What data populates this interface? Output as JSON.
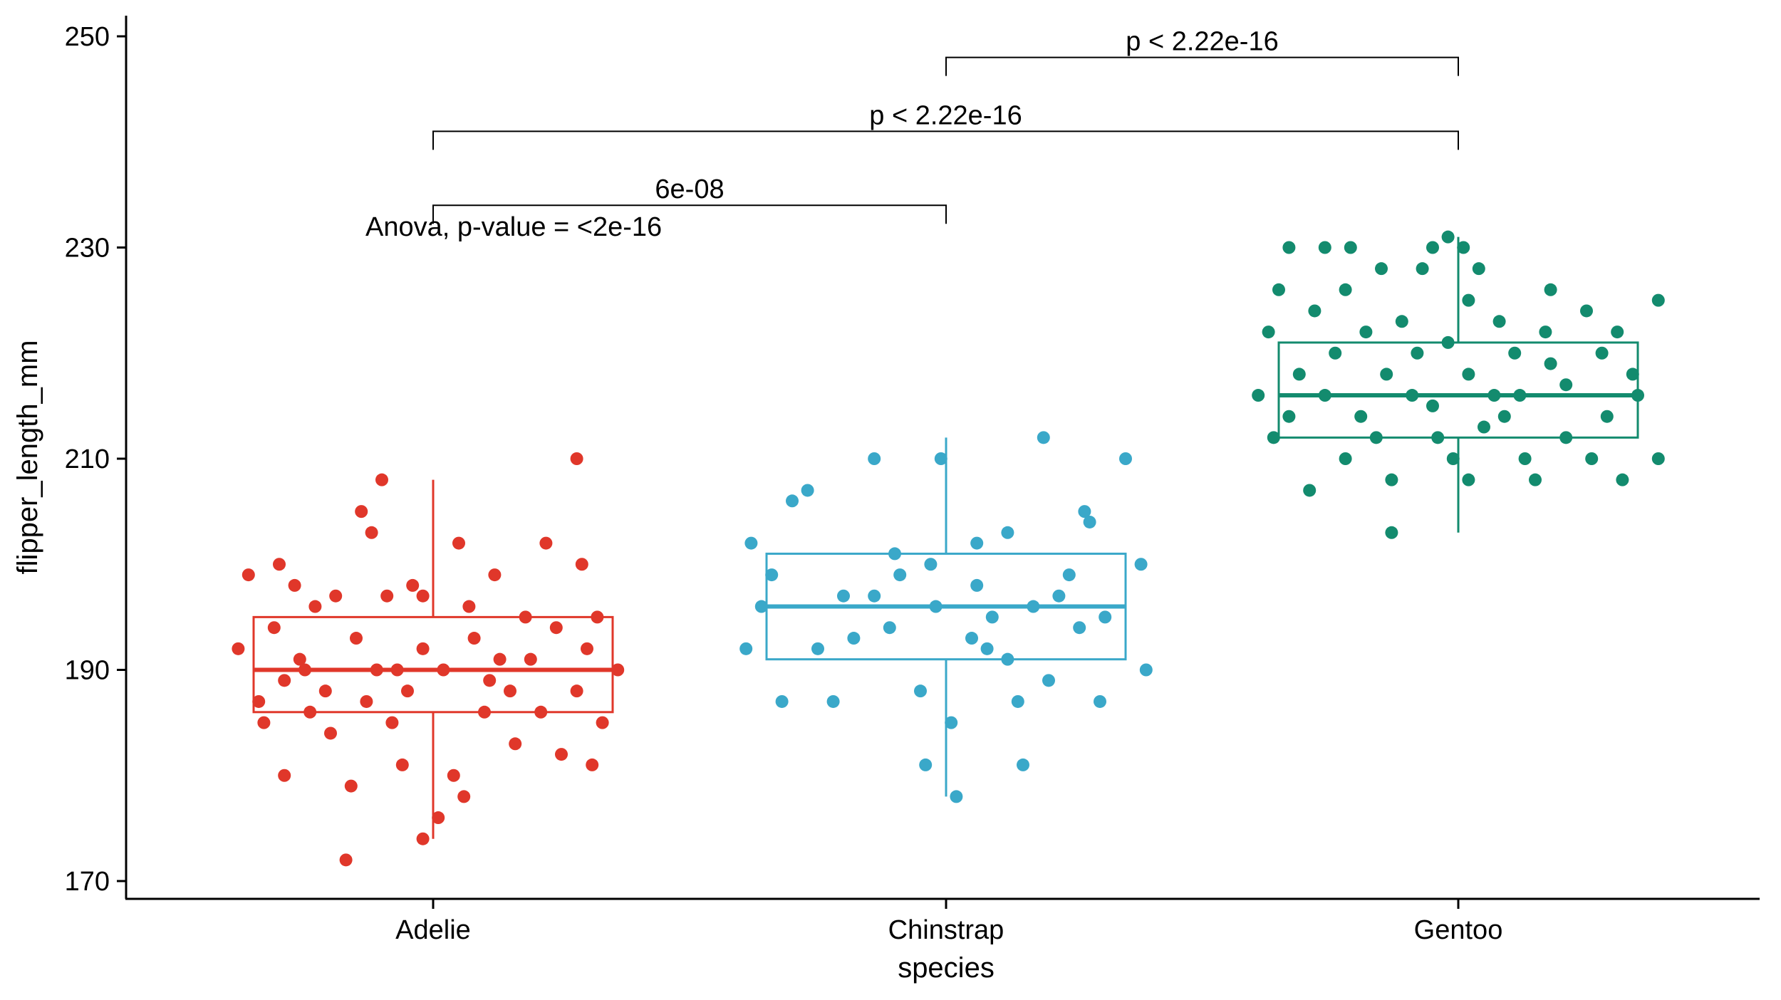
{
  "chart_data": {
    "type": "box-jitter",
    "xlabel": "species",
    "ylabel": "flipper_length_mm",
    "ylim": [
      168,
      252
    ],
    "yticks": [
      170,
      190,
      210,
      230,
      250
    ],
    "categories": [
      "Adelie",
      "Chinstrap",
      "Gentoo"
    ],
    "colors": [
      "#E0372A",
      "#3AA8C9",
      "#138B6E"
    ],
    "boxes": [
      {
        "name": "Adelie",
        "whisker_low": 174,
        "q1": 186,
        "median": 190,
        "q3": 195,
        "whisker_high": 208,
        "points": [
          [
            -0.17,
            172
          ],
          [
            -0.02,
            174
          ],
          [
            0.01,
            176
          ],
          [
            -0.29,
            180
          ],
          [
            -0.16,
            179
          ],
          [
            -0.29,
            189
          ],
          [
            -0.13,
            187
          ],
          [
            0.06,
            178
          ],
          [
            0.25,
            182
          ],
          [
            0.31,
            181
          ],
          [
            -0.24,
            186
          ],
          [
            -0.08,
            185
          ],
          [
            0.16,
            183
          ],
          [
            0.33,
            185
          ],
          [
            -0.34,
            187
          ],
          [
            -0.21,
            188
          ],
          [
            -0.05,
            188
          ],
          [
            0.11,
            189
          ],
          [
            0.28,
            188
          ],
          [
            -0.38,
            192
          ],
          [
            -0.26,
            191
          ],
          [
            -0.11,
            190
          ],
          [
            0.02,
            190
          ],
          [
            0.19,
            191
          ],
          [
            0.36,
            190
          ],
          [
            -0.31,
            194
          ],
          [
            -0.15,
            193
          ],
          [
            -0.02,
            192
          ],
          [
            0.08,
            193
          ],
          [
            0.24,
            194
          ],
          [
            -0.23,
            196
          ],
          [
            -0.09,
            197
          ],
          [
            0.07,
            196
          ],
          [
            0.18,
            195
          ],
          [
            0.32,
            195
          ],
          [
            -0.27,
            198
          ],
          [
            -0.04,
            198
          ],
          [
            0.12,
            199
          ],
          [
            0.29,
            200
          ],
          [
            -0.36,
            199
          ],
          [
            -0.19,
            197
          ],
          [
            0.05,
            202
          ],
          [
            0.22,
            202
          ],
          [
            -0.12,
            203
          ],
          [
            -0.14,
            205
          ],
          [
            -0.1,
            208
          ],
          [
            0.28,
            210
          ],
          [
            -0.3,
            200
          ],
          [
            -0.02,
            197
          ],
          [
            0.15,
            188
          ],
          [
            -0.2,
            184
          ],
          [
            0.1,
            186
          ],
          [
            -0.06,
            181
          ],
          [
            0.21,
            186
          ],
          [
            0.04,
            180
          ],
          [
            -0.33,
            185
          ],
          [
            0.3,
            192
          ],
          [
            -0.07,
            190
          ],
          [
            0.13,
            191
          ],
          [
            -0.25,
            190
          ]
        ]
      },
      {
        "name": "Chinstrap",
        "whisker_low": 178,
        "q1": 191,
        "median": 196,
        "q3": 201,
        "whisker_high": 212,
        "points": [
          [
            0.02,
            178
          ],
          [
            0.15,
            181
          ],
          [
            -0.04,
            181
          ],
          [
            0.01,
            185
          ],
          [
            -0.32,
            187
          ],
          [
            -0.22,
            187
          ],
          [
            0.14,
            187
          ],
          [
            0.3,
            187
          ],
          [
            0.2,
            189
          ],
          [
            -0.05,
            188
          ],
          [
            0.39,
            190
          ],
          [
            0.12,
            191
          ],
          [
            -0.39,
            192
          ],
          [
            -0.25,
            192
          ],
          [
            -0.11,
            194
          ],
          [
            0.05,
            193
          ],
          [
            0.26,
            194
          ],
          [
            -0.36,
            196
          ],
          [
            -0.2,
            197
          ],
          [
            -0.02,
            196
          ],
          [
            0.09,
            195
          ],
          [
            0.31,
            195
          ],
          [
            -0.34,
            199
          ],
          [
            -0.14,
            197
          ],
          [
            0.06,
            198
          ],
          [
            0.24,
            199
          ],
          [
            0.38,
            200
          ],
          [
            -0.38,
            202
          ],
          [
            -0.1,
            201
          ],
          [
            0.06,
            202
          ],
          [
            0.12,
            203
          ],
          [
            0.27,
            205
          ],
          [
            -0.3,
            206
          ],
          [
            -0.27,
            207
          ],
          [
            -0.01,
            210
          ],
          [
            -0.14,
            210
          ],
          [
            0.19,
            212
          ],
          [
            0.35,
            210
          ],
          [
            0.28,
            204
          ],
          [
            -0.09,
            199
          ],
          [
            0.17,
            196
          ],
          [
            -0.18,
            193
          ],
          [
            0.08,
            192
          ],
          [
            -0.03,
            200
          ],
          [
            0.22,
            197
          ]
        ]
      },
      {
        "name": "Gentoo",
        "whisker_low": 203,
        "q1": 212,
        "median": 216,
        "q3": 221,
        "whisker_high": 231,
        "points": [
          [
            -0.13,
            203
          ],
          [
            -0.29,
            207
          ],
          [
            -0.13,
            208
          ],
          [
            0.02,
            208
          ],
          [
            0.15,
            208
          ],
          [
            0.32,
            208
          ],
          [
            -0.22,
            210
          ],
          [
            -0.01,
            210
          ],
          [
            0.13,
            210
          ],
          [
            0.26,
            210
          ],
          [
            0.39,
            210
          ],
          [
            -0.36,
            212
          ],
          [
            -0.16,
            212
          ],
          [
            0.05,
            213
          ],
          [
            0.21,
            212
          ],
          [
            -0.33,
            214
          ],
          [
            -0.19,
            214
          ],
          [
            -0.05,
            215
          ],
          [
            0.09,
            214
          ],
          [
            0.29,
            214
          ],
          [
            -0.39,
            216
          ],
          [
            -0.26,
            216
          ],
          [
            -0.09,
            216
          ],
          [
            0.07,
            216
          ],
          [
            0.21,
            217
          ],
          [
            0.35,
            216
          ],
          [
            -0.31,
            218
          ],
          [
            -0.14,
            218
          ],
          [
            0.02,
            218
          ],
          [
            0.18,
            219
          ],
          [
            -0.24,
            220
          ],
          [
            -0.08,
            220
          ],
          [
            0.11,
            220
          ],
          [
            0.28,
            220
          ],
          [
            -0.37,
            222
          ],
          [
            -0.18,
            222
          ],
          [
            -0.02,
            221
          ],
          [
            0.17,
            222
          ],
          [
            0.31,
            222
          ],
          [
            -0.28,
            224
          ],
          [
            -0.11,
            223
          ],
          [
            0.08,
            223
          ],
          [
            0.25,
            224
          ],
          [
            0.39,
            225
          ],
          [
            -0.35,
            226
          ],
          [
            0.02,
            225
          ],
          [
            0.18,
            226
          ],
          [
            -0.15,
            228
          ],
          [
            0.04,
            228
          ],
          [
            -0.07,
            228
          ],
          [
            -0.33,
            230
          ],
          [
            -0.26,
            230
          ],
          [
            -0.21,
            230
          ],
          [
            -0.05,
            230
          ],
          [
            -0.02,
            231
          ],
          [
            0.01,
            230
          ],
          [
            -0.22,
            226
          ],
          [
            0.12,
            216
          ],
          [
            -0.04,
            212
          ],
          [
            0.34,
            218
          ]
        ]
      }
    ],
    "comparisons": [
      {
        "from": "Chinstrap",
        "to": "Gentoo",
        "label": "p < 2.22e-16",
        "y": 248
      },
      {
        "from": "Adelie",
        "to": "Gentoo",
        "label": "p < 2.22e-16",
        "y": 241
      },
      {
        "from": "Adelie",
        "to": "Chinstrap",
        "label": "6e-08",
        "y": 234
      }
    ],
    "annotation": "Anova, p-value = <2e-16"
  }
}
